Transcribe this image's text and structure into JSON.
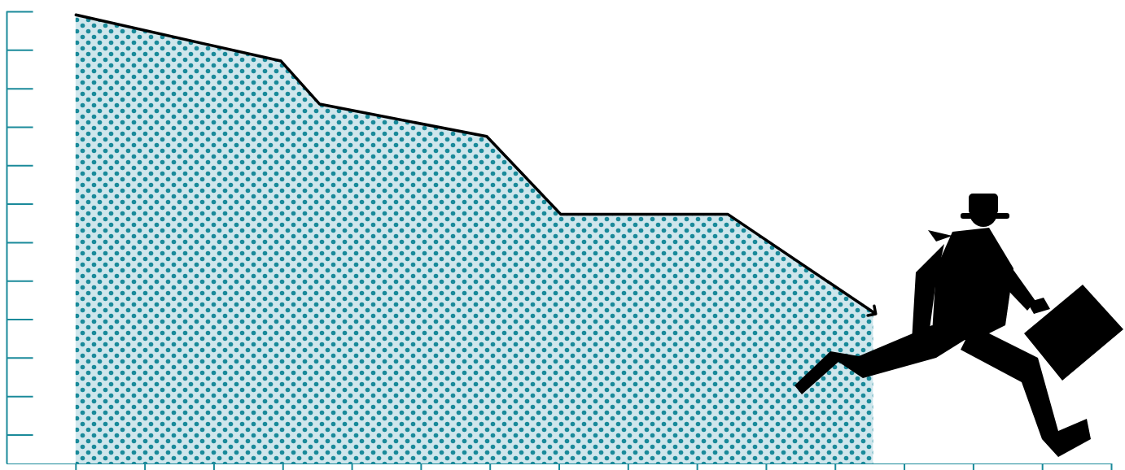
{
  "chart_data": {
    "type": "area",
    "x": [
      1,
      3.97,
      4.53,
      6.95,
      8.02,
      10.44,
      12.55
    ],
    "values": [
      11.92,
      10.72,
      9.6,
      8.76,
      6.74,
      6.74,
      4.19
    ],
    "color": "#000000",
    "marker": "arrow",
    "xlim": [
      0,
      16
    ],
    "xticks": [
      1,
      2,
      3,
      4,
      5,
      6,
      7,
      8,
      9,
      10,
      11,
      12,
      13,
      14,
      15,
      16
    ],
    "ylim": [
      0.25,
      12
    ],
    "yticks": [
      1,
      2,
      3,
      4,
      5,
      6,
      7,
      8,
      9,
      10,
      11,
      12
    ],
    "tick_labels": false
  }
}
